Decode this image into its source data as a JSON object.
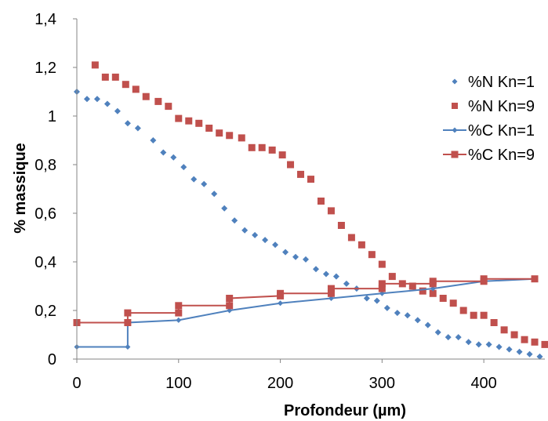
{
  "chart_data": {
    "type": "scatter",
    "xlabel": "Profondeur (µm)",
    "ylabel": "% massique",
    "xlim": [
      0,
      460
    ],
    "ylim": [
      0,
      1.4
    ],
    "x_ticks": [
      "0",
      "100",
      "200",
      "300",
      "400"
    ],
    "y_ticks": [
      "0",
      "0,2",
      "0,4",
      "0,6",
      "0,8",
      "1",
      "1,2",
      "1,4"
    ],
    "grid": false,
    "legend_position": "right",
    "series": [
      {
        "name": "%N Kn=1",
        "style": "markers",
        "marker": "diamond",
        "color": "#4f81bd",
        "x": [
          0,
          10,
          20,
          30,
          40,
          50,
          60,
          75,
          85,
          95,
          105,
          115,
          125,
          135,
          145,
          155,
          165,
          175,
          185,
          195,
          205,
          215,
          225,
          235,
          245,
          255,
          265,
          275,
          285,
          295,
          305,
          315,
          325,
          335,
          345,
          355,
          365,
          375,
          385,
          395,
          405,
          415,
          425,
          435,
          445,
          455
        ],
        "y": [
          1.1,
          1.07,
          1.07,
          1.05,
          1.02,
          0.97,
          0.95,
          0.9,
          0.85,
          0.83,
          0.79,
          0.74,
          0.72,
          0.68,
          0.62,
          0.57,
          0.53,
          0.51,
          0.49,
          0.47,
          0.44,
          0.42,
          0.41,
          0.37,
          0.35,
          0.34,
          0.31,
          0.29,
          0.25,
          0.24,
          0.21,
          0.19,
          0.18,
          0.16,
          0.14,
          0.11,
          0.09,
          0.09,
          0.07,
          0.06,
          0.06,
          0.05,
          0.04,
          0.03,
          0.02,
          0.01
        ]
      },
      {
        "name": "%N Kn=9",
        "style": "markers",
        "marker": "square",
        "color": "#c0504d",
        "x": [
          18,
          28,
          38,
          48,
          58,
          68,
          80,
          90,
          100,
          110,
          120,
          130,
          140,
          150,
          162,
          172,
          182,
          192,
          202,
          210,
          220,
          230,
          240,
          250,
          260,
          270,
          280,
          290,
          300,
          310,
          320,
          330,
          340,
          350,
          360,
          370,
          380,
          390,
          400,
          410,
          420,
          430,
          440,
          450,
          460
        ],
        "y": [
          1.21,
          1.16,
          1.16,
          1.13,
          1.11,
          1.08,
          1.06,
          1.04,
          0.99,
          0.98,
          0.97,
          0.95,
          0.93,
          0.92,
          0.91,
          0.87,
          0.87,
          0.86,
          0.84,
          0.8,
          0.76,
          0.74,
          0.65,
          0.61,
          0.55,
          0.5,
          0.47,
          0.43,
          0.39,
          0.34,
          0.31,
          0.3,
          0.28,
          0.27,
          0.25,
          0.23,
          0.2,
          0.18,
          0.18,
          0.15,
          0.12,
          0.1,
          0.08,
          0.07,
          0.06
        ]
      },
      {
        "name": "%C Kn=1",
        "style": "step",
        "marker": "diamond",
        "color": "#4f81bd",
        "x": [
          0,
          50,
          50,
          100,
          150,
          200,
          250,
          300,
          350,
          400,
          450
        ],
        "y": [
          0.05,
          0.05,
          0.15,
          0.16,
          0.2,
          0.23,
          0.25,
          0.27,
          0.29,
          0.32,
          0.33
        ]
      },
      {
        "name": "%C Kn=9",
        "style": "step",
        "marker": "square",
        "color": "#c0504d",
        "x": [
          0,
          50,
          50,
          100,
          100,
          150,
          150,
          200,
          200,
          250,
          250,
          300,
          300,
          350,
          350,
          400,
          400,
          450
        ],
        "y": [
          0.15,
          0.15,
          0.19,
          0.19,
          0.22,
          0.22,
          0.25,
          0.26,
          0.27,
          0.27,
          0.29,
          0.29,
          0.31,
          0.31,
          0.32,
          0.32,
          0.33,
          0.33
        ]
      }
    ]
  }
}
